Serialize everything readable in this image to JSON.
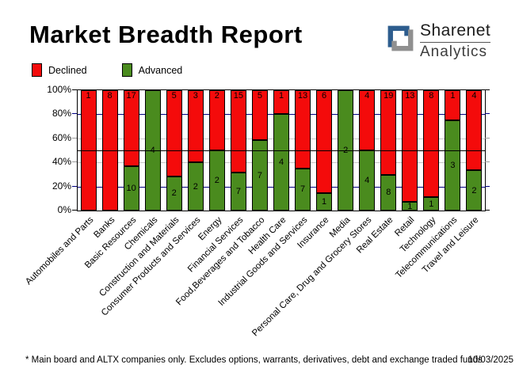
{
  "header": {
    "title": "Market Breadth Report",
    "logo": {
      "line1": "Sharenet",
      "line2": "Analytics",
      "mark_blue": "#2d5d8e",
      "mark_gray": "#909090"
    }
  },
  "legend": [
    {
      "label": "Declined",
      "color": "#f40b0b"
    },
    {
      "label": "Advanced",
      "color": "#4a8b1e"
    }
  ],
  "chart_data": {
    "type": "bar",
    "stacked": true,
    "normalized": "percent",
    "title": "Market Breadth Report",
    "categories": [
      "Automobiles and Parts",
      "Banks",
      "Basic Resources",
      "Chemicals",
      "Construction and Materials",
      "Consumer Products and Services",
      "Energy",
      "Financial Services",
      "Food,Beverages and Tobacco",
      "Health Care",
      "Industrial Goods and Services",
      "Insurance",
      "Media",
      "Personal Care, Drug and Grocery Stores",
      "Real Estate",
      "Retail",
      "Technology",
      "Telecommunications",
      "Travel and Leisure"
    ],
    "series": [
      {
        "name": "Declined",
        "color": "#f40b0b",
        "values": [
          1,
          8,
          17,
          0,
          5,
          3,
          2,
          15,
          5,
          1,
          13,
          6,
          0,
          4,
          19,
          13,
          8,
          1,
          4
        ]
      },
      {
        "name": "Advanced",
        "color": "#4a8b1e",
        "values": [
          0,
          0,
          10,
          4,
          2,
          2,
          2,
          7,
          7,
          4,
          7,
          1,
          2,
          4,
          8,
          1,
          1,
          3,
          2
        ]
      }
    ],
    "ylim": [
      0,
      100
    ],
    "y_ticks": [
      "100%",
      "80%",
      "60%",
      "40%",
      "20%",
      "0%"
    ],
    "legend_position": "top-left",
    "gridlines": {
      "navy_levels": [
        20,
        80
      ],
      "navy_color": "#000080",
      "gray_levels": [
        40,
        60
      ],
      "gray_color": "#c6c6c6",
      "mid_level": 50,
      "mid_color": "#000000"
    }
  },
  "footer": {
    "note": "* Main board and ALTX companies only. Excludes options, warrants, derivatives, debt and exchange traded funds",
    "date": "10/03/2025"
  }
}
